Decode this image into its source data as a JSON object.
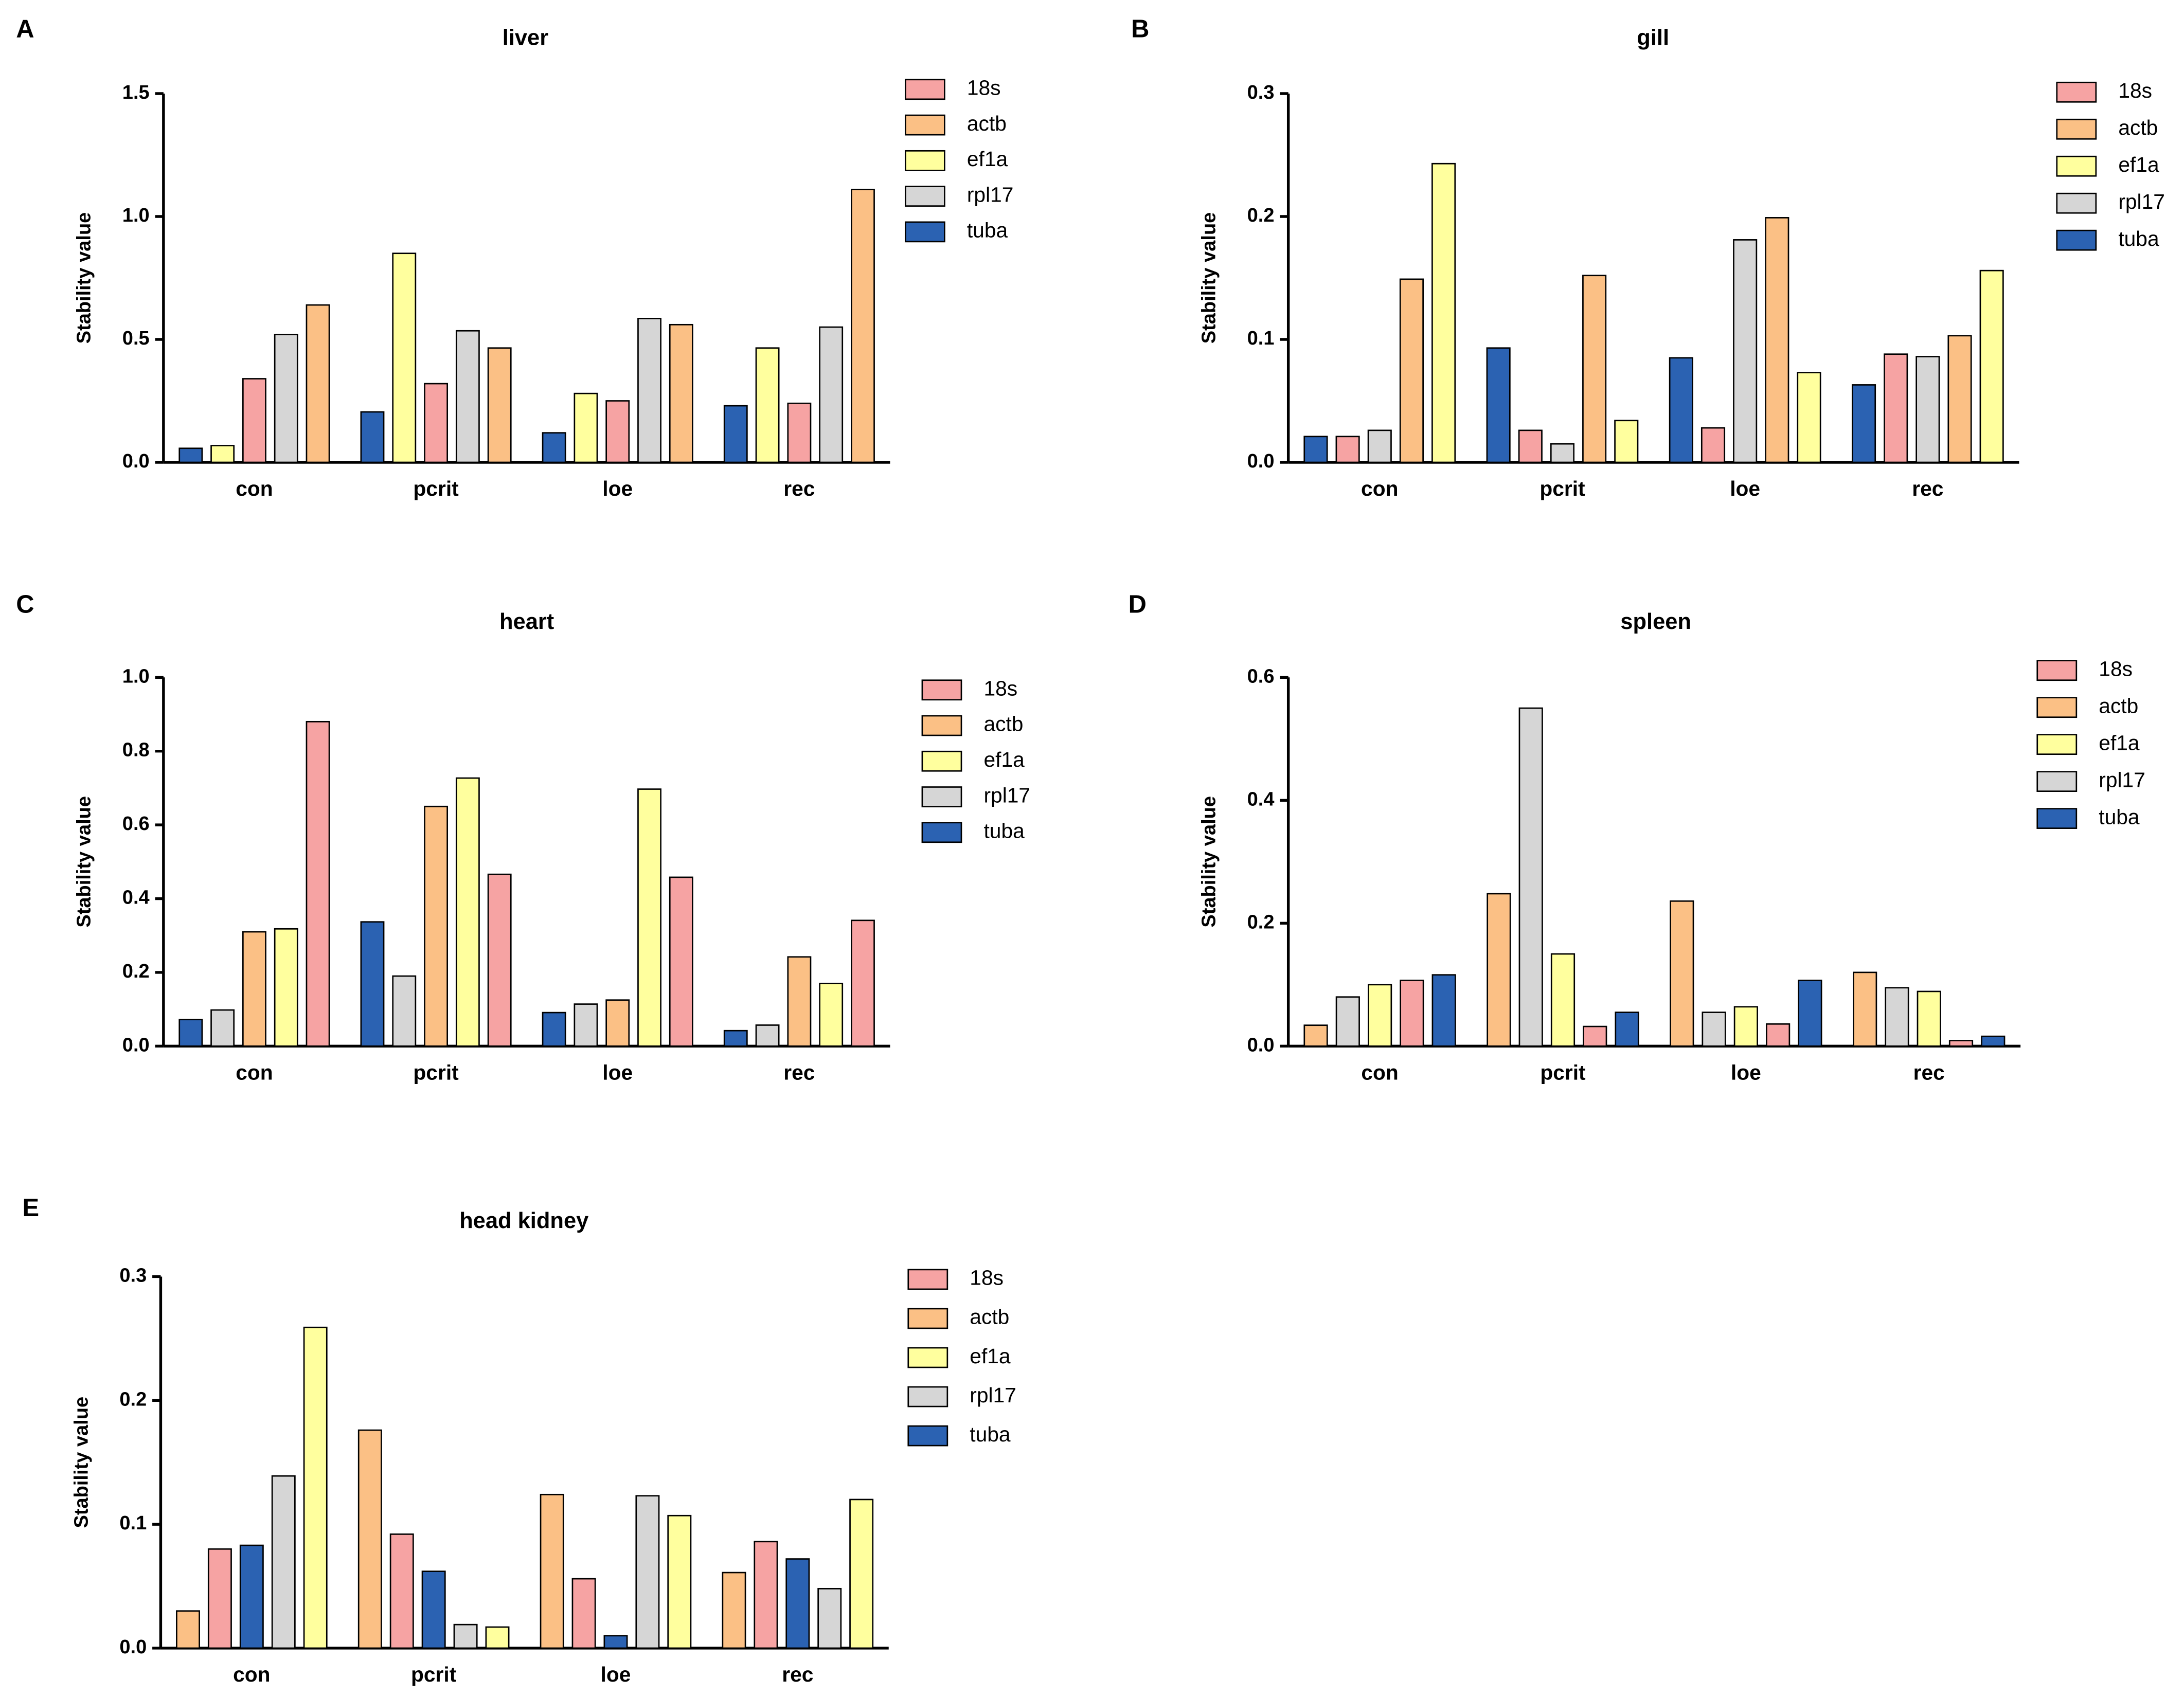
{
  "chart_data": [
    {
      "type": "bar",
      "panel": "A",
      "title": "liver",
      "ylabel": "Stability value",
      "ylim": [
        0,
        1.5
      ],
      "yticks": [
        {
          "value": 0,
          "label": "0.0"
        },
        0.5,
        {
          "value": 1,
          "label": "1.0"
        },
        1.5
      ],
      "legend": [
        {
          "name": "18s",
          "color": "#f6a3a3"
        },
        {
          "name": "actb",
          "color": "#fbc085"
        },
        {
          "name": "ef1a",
          "color": "#ffff9e"
        },
        {
          "name": "rpl17",
          "color": "#d6d6d6"
        },
        {
          "name": "tuba",
          "color": "#2b62b2"
        }
      ],
      "groups": [
        {
          "category": "con",
          "bars": [
            {
              "series": "tuba",
              "value": 0.057
            },
            {
              "series": "ef1a",
              "value": 0.068
            },
            {
              "series": "18s",
              "value": 0.34
            },
            {
              "series": "rpl17",
              "value": 0.52
            },
            {
              "series": "actb",
              "value": 0.64
            }
          ]
        },
        {
          "category": "pcrit",
          "bars": [
            {
              "series": "tuba",
              "value": 0.205
            },
            {
              "series": "ef1a",
              "value": 0.85
            },
            {
              "series": "18s",
              "value": 0.32
            },
            {
              "series": "rpl17",
              "value": 0.535
            },
            {
              "series": "actb",
              "value": 0.465
            }
          ]
        },
        {
          "category": "loe",
          "bars": [
            {
              "series": "tuba",
              "value": 0.12
            },
            {
              "series": "ef1a",
              "value": 0.28
            },
            {
              "series": "18s",
              "value": 0.25
            },
            {
              "series": "rpl17",
              "value": 0.585
            },
            {
              "series": "actb",
              "value": 0.56
            }
          ]
        },
        {
          "category": "rec",
          "bars": [
            {
              "series": "tuba",
              "value": 0.23
            },
            {
              "series": "ef1a",
              "value": 0.465
            },
            {
              "series": "18s",
              "value": 0.24
            },
            {
              "series": "rpl17",
              "value": 0.55
            },
            {
              "series": "actb",
              "value": 1.11
            }
          ]
        }
      ]
    },
    {
      "type": "bar",
      "panel": "B",
      "title": "gill",
      "ylabel": "Stability value",
      "ylim": [
        0,
        0.3
      ],
      "yticks": [
        {
          "value": 0,
          "label": "0.0"
        },
        0.1,
        0.2,
        0.3
      ],
      "legend": [
        {
          "name": "18s",
          "color": "#f6a3a3"
        },
        {
          "name": "actb",
          "color": "#fbc085"
        },
        {
          "name": "ef1a",
          "color": "#ffff9e"
        },
        {
          "name": "rpl17",
          "color": "#d6d6d6"
        },
        {
          "name": "tuba",
          "color": "#2b62b2"
        }
      ],
      "groups": [
        {
          "category": "con",
          "bars": [
            {
              "series": "tuba",
              "value": 0.021
            },
            {
              "series": "18s",
              "value": 0.021
            },
            {
              "series": "rpl17",
              "value": 0.026
            },
            {
              "series": "actb",
              "value": 0.149
            },
            {
              "series": "ef1a",
              "value": 0.243
            }
          ]
        },
        {
          "category": "pcrit",
          "bars": [
            {
              "series": "tuba",
              "value": 0.093
            },
            {
              "series": "18s",
              "value": 0.026
            },
            {
              "series": "rpl17",
              "value": 0.015
            },
            {
              "series": "actb",
              "value": 0.152
            },
            {
              "series": "ef1a",
              "value": 0.034
            }
          ]
        },
        {
          "category": "loe",
          "bars": [
            {
              "series": "tuba",
              "value": 0.085
            },
            {
              "series": "18s",
              "value": 0.028
            },
            {
              "series": "rpl17",
              "value": 0.181
            },
            {
              "series": "actb",
              "value": 0.199
            },
            {
              "series": "ef1a",
              "value": 0.073
            }
          ]
        },
        {
          "category": "rec",
          "bars": [
            {
              "series": "tuba",
              "value": 0.063
            },
            {
              "series": "18s",
              "value": 0.088
            },
            {
              "series": "rpl17",
              "value": 0.086
            },
            {
              "series": "actb",
              "value": 0.103
            },
            {
              "series": "ef1a",
              "value": 0.156
            }
          ]
        }
      ]
    },
    {
      "type": "bar",
      "panel": "C",
      "title": "heart",
      "ylabel": "Stability value",
      "ylim": [
        0,
        1
      ],
      "yticks": [
        {
          "value": 0,
          "label": "0.0"
        },
        0.2,
        0.4,
        0.6,
        0.8,
        {
          "value": 1,
          "label": "1.0"
        }
      ],
      "legend": [
        {
          "name": "18s",
          "color": "#f6a3a3"
        },
        {
          "name": "actb",
          "color": "#fbc085"
        },
        {
          "name": "ef1a",
          "color": "#ffff9e"
        },
        {
          "name": "rpl17",
          "color": "#d6d6d6"
        },
        {
          "name": "tuba",
          "color": "#2b62b2"
        }
      ],
      "groups": [
        {
          "category": "con",
          "bars": [
            {
              "series": "tuba",
              "value": 0.072
            },
            {
              "series": "rpl17",
              "value": 0.098
            },
            {
              "series": "actb",
              "value": 0.31
            },
            {
              "series": "ef1a",
              "value": 0.318
            },
            {
              "series": "18s",
              "value": 0.88
            }
          ]
        },
        {
          "category": "pcrit",
          "bars": [
            {
              "series": "tuba",
              "value": 0.337
            },
            {
              "series": "rpl17",
              "value": 0.19
            },
            {
              "series": "actb",
              "value": 0.65
            },
            {
              "series": "ef1a",
              "value": 0.727
            },
            {
              "series": "18s",
              "value": 0.466
            }
          ]
        },
        {
          "category": "loe",
          "bars": [
            {
              "series": "tuba",
              "value": 0.091
            },
            {
              "series": "rpl17",
              "value": 0.114
            },
            {
              "series": "actb",
              "value": 0.125
            },
            {
              "series": "ef1a",
              "value": 0.697
            },
            {
              "series": "18s",
              "value": 0.458
            }
          ]
        },
        {
          "category": "rec",
          "bars": [
            {
              "series": "tuba",
              "value": 0.042
            },
            {
              "series": "rpl17",
              "value": 0.057
            },
            {
              "series": "actb",
              "value": 0.242
            },
            {
              "series": "ef1a",
              "value": 0.17
            },
            {
              "series": "18s",
              "value": 0.341
            }
          ]
        }
      ]
    },
    {
      "type": "bar",
      "panel": "D",
      "title": "spleen",
      "ylabel": "Stability value",
      "ylim": [
        0,
        0.6
      ],
      "yticks": [
        {
          "value": 0,
          "label": "0.0"
        },
        0.2,
        0.4,
        0.6
      ],
      "legend": [
        {
          "name": "18s",
          "color": "#f6a3a3"
        },
        {
          "name": "actb",
          "color": "#fbc085"
        },
        {
          "name": "ef1a",
          "color": "#ffff9e"
        },
        {
          "name": "rpl17",
          "color": "#d6d6d6"
        },
        {
          "name": "tuba",
          "color": "#2b62b2"
        }
      ],
      "groups": [
        {
          "category": "con",
          "bars": [
            {
              "series": "actb",
              "value": 0.034
            },
            {
              "series": "rpl17",
              "value": 0.08
            },
            {
              "series": "ef1a",
              "value": 0.1
            },
            {
              "series": "18s",
              "value": 0.107
            },
            {
              "series": "tuba",
              "value": 0.116
            }
          ]
        },
        {
          "category": "pcrit",
          "bars": [
            {
              "series": "actb",
              "value": 0.248
            },
            {
              "series": "rpl17",
              "value": 0.55
            },
            {
              "series": "ef1a",
              "value": 0.15
            },
            {
              "series": "18s",
              "value": 0.032
            },
            {
              "series": "tuba",
              "value": 0.055
            }
          ]
        },
        {
          "category": "loe",
          "bars": [
            {
              "series": "actb",
              "value": 0.236
            },
            {
              "series": "rpl17",
              "value": 0.055
            },
            {
              "series": "ef1a",
              "value": 0.064
            },
            {
              "series": "18s",
              "value": 0.036
            },
            {
              "series": "tuba",
              "value": 0.107
            }
          ]
        },
        {
          "category": "rec",
          "bars": [
            {
              "series": "actb",
              "value": 0.12
            },
            {
              "series": "rpl17",
              "value": 0.095
            },
            {
              "series": "ef1a",
              "value": 0.089
            },
            {
              "series": "18s",
              "value": 0.009
            },
            {
              "series": "tuba",
              "value": 0.016
            }
          ]
        }
      ]
    },
    {
      "type": "bar",
      "panel": "E",
      "title": "head kidney",
      "ylabel": "Stability value",
      "ylim": [
        0,
        0.3
      ],
      "yticks": [
        {
          "value": 0,
          "label": "0.0"
        },
        0.1,
        0.2,
        0.3
      ],
      "legend": [
        {
          "name": "18s",
          "color": "#f6a3a3"
        },
        {
          "name": "actb",
          "color": "#fbc085"
        },
        {
          "name": "ef1a",
          "color": "#ffff9e"
        },
        {
          "name": "rpl17",
          "color": "#d6d6d6"
        },
        {
          "name": "tuba",
          "color": "#2b62b2"
        }
      ],
      "groups": [
        {
          "category": "con",
          "bars": [
            {
              "series": "actb",
              "value": 0.03
            },
            {
              "series": "18s",
              "value": 0.08
            },
            {
              "series": "tuba",
              "value": 0.083
            },
            {
              "series": "rpl17",
              "value": 0.139
            },
            {
              "series": "ef1a",
              "value": 0.259
            }
          ]
        },
        {
          "category": "pcrit",
          "bars": [
            {
              "series": "actb",
              "value": 0.176
            },
            {
              "series": "18s",
              "value": 0.092
            },
            {
              "series": "tuba",
              "value": 0.062
            },
            {
              "series": "rpl17",
              "value": 0.019
            },
            {
              "series": "ef1a",
              "value": 0.017
            }
          ]
        },
        {
          "category": "loe",
          "bars": [
            {
              "series": "actb",
              "value": 0.124
            },
            {
              "series": "18s",
              "value": 0.056
            },
            {
              "series": "tuba",
              "value": 0.01
            },
            {
              "series": "rpl17",
              "value": 0.123
            },
            {
              "series": "ef1a",
              "value": 0.107
            }
          ]
        },
        {
          "category": "rec",
          "bars": [
            {
              "series": "actb",
              "value": 0.061
            },
            {
              "series": "18s",
              "value": 0.086
            },
            {
              "series": "tuba",
              "value": 0.072
            },
            {
              "series": "rpl17",
              "value": 0.048
            },
            {
              "series": "ef1a",
              "value": 0.12
            }
          ]
        }
      ]
    }
  ]
}
